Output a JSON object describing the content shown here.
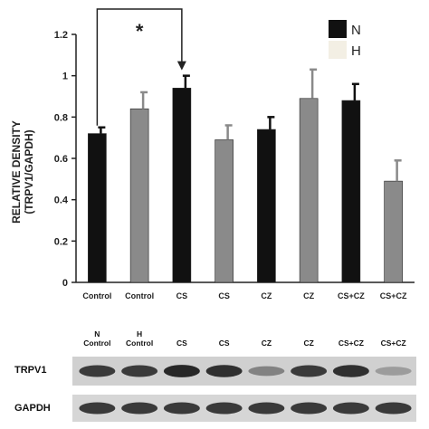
{
  "chart_data": {
    "type": "bar",
    "ylabel": "RELATIVE DENSITY",
    "ylabel_sub": "(TRPV1/GAPDH)",
    "ylim": [
      0,
      1.2
    ],
    "yticks": [
      "0",
      "0.2",
      "0.4",
      "0.6",
      "0.8",
      "1",
      "1.2"
    ],
    "categories": [
      "Control",
      "Control",
      "CS",
      "CS",
      "CZ",
      "CZ",
      "CS+CZ",
      "CS+CZ"
    ],
    "values": [
      0.72,
      0.84,
      0.94,
      0.69,
      0.74,
      0.89,
      0.88,
      0.49
    ],
    "errors": [
      0.03,
      0.08,
      0.06,
      0.07,
      0.06,
      0.14,
      0.08,
      0.1
    ],
    "groups": [
      "N",
      "H",
      "N",
      "H",
      "N",
      "H",
      "N",
      "H"
    ],
    "legend": [
      {
        "name": "N",
        "color": "#111111"
      },
      {
        "name": "H",
        "color": "#f3efe4"
      }
    ],
    "legend_position": "top-right",
    "colors": {
      "N": "#111111",
      "H_bar": "#8a8a8a"
    },
    "significance": {
      "from": 0,
      "to": 2,
      "label": "*"
    },
    "grid": false
  },
  "blot": {
    "lane_labels": [
      [
        "N",
        "Control"
      ],
      [
        "H",
        "Control"
      ],
      [
        "CS"
      ],
      [
        "CS"
      ],
      [
        "CZ"
      ],
      [
        "CZ"
      ],
      [
        "CS+CZ"
      ],
      [
        "CS+CZ"
      ]
    ],
    "rows": [
      {
        "label": "TRPV1",
        "intensities": [
          0.85,
          0.85,
          0.95,
          0.9,
          0.45,
          0.85,
          0.9,
          0.3
        ]
      },
      {
        "label": "GAPDH",
        "intensities": [
          0.85,
          0.85,
          0.85,
          0.85,
          0.85,
          0.85,
          0.85,
          0.85
        ]
      }
    ]
  }
}
